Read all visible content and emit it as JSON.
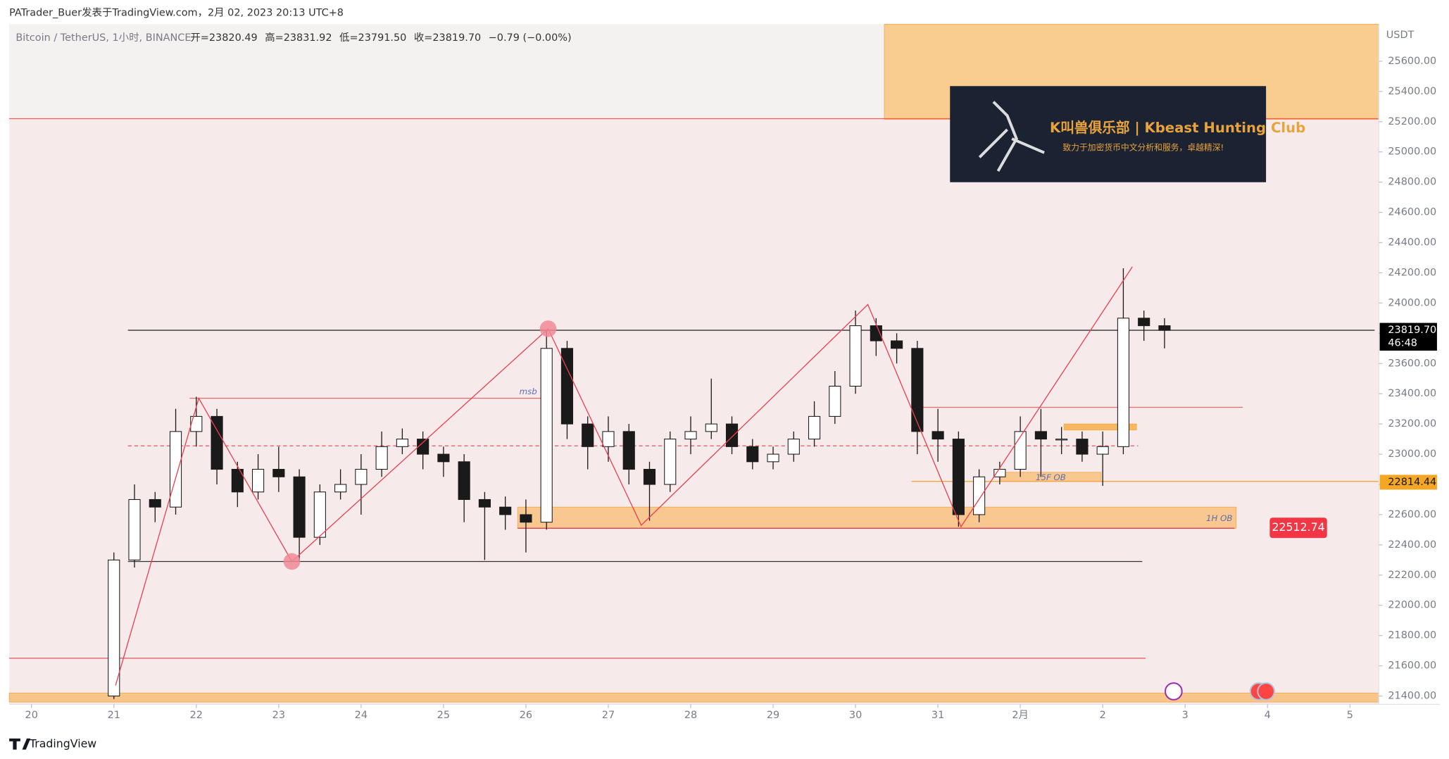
{
  "chart_data": {
    "type": "candlestick",
    "title": "PATrader_Buer发表于TradingView.com，2月 02, 2023 20:13 UTC+8",
    "symbol": "Bitcoin / TetherUS, 1小时, BINANCE",
    "ohlc_legend": [
      "开=23820.49",
      "高=23831.92",
      "低=23791.50",
      "收=23819.70",
      "−0.79 (−0.00%)"
    ],
    "y_axis_label": "USDT",
    "footer": "TradingView",
    "banner": {
      "title": "K叫兽俱乐部 | Kbeast Hunting Club",
      "subtitle": "致力于加密货币中文分析和服务，卓越精深!"
    },
    "up_color": "#ffffff",
    "down_color": "#1a1a1a",
    "wick_color": "#1a1a1a",
    "xlim": [
      -0.27,
      16.35
    ],
    "xticks": [
      {
        "value": 0,
        "label": "20"
      },
      {
        "value": 1,
        "label": "21"
      },
      {
        "value": 2,
        "label": "22"
      },
      {
        "value": 3,
        "label": "23"
      },
      {
        "value": 4,
        "label": "24"
      },
      {
        "value": 5,
        "label": "25"
      },
      {
        "value": 6,
        "label": "26"
      },
      {
        "value": 7,
        "label": "27"
      },
      {
        "value": 8,
        "label": "28"
      },
      {
        "value": 9,
        "label": "29"
      },
      {
        "value": 10,
        "label": "30"
      },
      {
        "value": 11,
        "label": "31"
      },
      {
        "value": 12,
        "label": "2月"
      },
      {
        "value": 13,
        "label": "2"
      },
      {
        "value": 14,
        "label": "3"
      },
      {
        "value": 15,
        "label": "4"
      },
      {
        "value": 16,
        "label": "5"
      }
    ],
    "ylim": [
      21345,
      25845
    ],
    "yticks": [
      {
        "value": 21400,
        "label": "21400.00"
      },
      {
        "value": 21600,
        "label": "21600.00"
      },
      {
        "value": 21800,
        "label": "21800.00"
      },
      {
        "value": 22000,
        "label": "22000.00"
      },
      {
        "value": 22200,
        "label": "22200.00"
      },
      {
        "value": 22400,
        "label": "22400.00"
      },
      {
        "value": 22600,
        "label": "22600.00"
      },
      {
        "value": 22800,
        "label": "22800.00"
      },
      {
        "value": 23000,
        "label": "23000.00"
      },
      {
        "value": 23200,
        "label": "23200.00"
      },
      {
        "value": 23400,
        "label": "23400.00"
      },
      {
        "value": 23600,
        "label": "23600.00"
      },
      {
        "value": 23800,
        "label": "23800.00"
      },
      {
        "value": 24000,
        "label": "24000.00"
      },
      {
        "value": 24200,
        "label": "24200.00"
      },
      {
        "value": 24400,
        "label": "24400.00"
      },
      {
        "value": 24600,
        "label": "24600.00"
      },
      {
        "value": 24800,
        "label": "24800.00"
      },
      {
        "value": 25000,
        "label": "25000.00"
      },
      {
        "value": 25200,
        "label": "25200.00"
      },
      {
        "value": 25400,
        "label": "25400.00"
      },
      {
        "value": 25600,
        "label": "25600.00"
      }
    ],
    "x": [
      1.0,
      1.25,
      1.5,
      1.75,
      2.0,
      2.25,
      2.5,
      2.75,
      3.0,
      3.25,
      3.5,
      3.75,
      4.0,
      4.25,
      4.5,
      4.75,
      5.0,
      5.25,
      5.5,
      5.75,
      6.0,
      6.25,
      6.5,
      6.75,
      7.0,
      7.25,
      7.5,
      7.75,
      8.0,
      8.25,
      8.5,
      8.75,
      9.0,
      9.25,
      9.5,
      9.75,
      10.0,
      10.25,
      10.5,
      10.75,
      11.0,
      11.25,
      11.5,
      11.75,
      12.0,
      12.25,
      12.5,
      12.75,
      13.0,
      13.25,
      13.5,
      13.75
    ],
    "open": [
      21400,
      22300,
      22700,
      22650,
      23150,
      23250,
      22900,
      22750,
      22900,
      22850,
      22450,
      22750,
      22800,
      22900,
      23050,
      23100,
      23000,
      22950,
      22700,
      22650,
      22600,
      22550,
      23700,
      23200,
      23050,
      23150,
      22900,
      22800,
      23100,
      23150,
      23200,
      23050,
      22950,
      23000,
      23100,
      23250,
      23450,
      23850,
      23750,
      23700,
      23150,
      23100,
      22600,
      22850,
      22900,
      23150,
      23100,
      23100,
      23000,
      23050,
      23900,
      23850
    ],
    "high": [
      22350,
      22800,
      22750,
      23300,
      23380,
      23300,
      22950,
      23000,
      23050,
      22900,
      22800,
      22900,
      23000,
      23150,
      23170,
      23150,
      23050,
      23000,
      22750,
      22720,
      22700,
      23820,
      23750,
      23250,
      23250,
      23200,
      22950,
      23150,
      23250,
      23500,
      23250,
      23100,
      23050,
      23150,
      23350,
      23550,
      23950,
      23900,
      23800,
      23750,
      23300,
      23150,
      22900,
      22950,
      23250,
      23300,
      23180,
      23150,
      23150,
      24230,
      23950,
      23900
    ],
    "low": [
      21380,
      22250,
      22550,
      22600,
      23050,
      22800,
      22650,
      22700,
      22750,
      22290,
      22400,
      22700,
      22600,
      22850,
      23000,
      22900,
      22850,
      22550,
      22300,
      22500,
      22350,
      22500,
      23100,
      22900,
      22950,
      22800,
      22560,
      22750,
      23000,
      23100,
      23000,
      22900,
      22900,
      22950,
      23050,
      23200,
      23400,
      23650,
      23600,
      23000,
      22950,
      22520,
      22550,
      22800,
      22850,
      22850,
      23000,
      22950,
      22790,
      23000,
      23750,
      23700
    ],
    "close": [
      22300,
      22700,
      22650,
      23150,
      23250,
      22900,
      22750,
      22900,
      22850,
      22450,
      22750,
      22800,
      22900,
      23050,
      23100,
      23000,
      22950,
      22700,
      22650,
      22600,
      22550,
      23700,
      23200,
      23050,
      23150,
      22900,
      22800,
      23100,
      23150,
      23200,
      23050,
      22950,
      23000,
      23100,
      23250,
      23450,
      23850,
      23750,
      23700,
      23150,
      23100,
      22600,
      22850,
      22900,
      23150,
      23100,
      23100,
      23000,
      23050,
      23900,
      23850,
      23819.7
    ],
    "zones": [
      {
        "price": [
          25215,
          25845
        ],
        "x": [
          10.35,
          16.35
        ],
        "color": "#f9cd8f"
      },
      {
        "price": [
          21360,
          21420
        ],
        "x": [
          -0.27,
          16.35
        ],
        "color": "#f7c489"
      },
      {
        "price": [
          22510,
          22650
        ],
        "x": [
          5.9,
          14.62
        ],
        "color": "#f9c891",
        "label": "1H OB"
      },
      {
        "price": [
          22820,
          22880
        ],
        "x": [
          11.76,
          12.98
        ],
        "color": "#f9c891",
        "label": "15F OB"
      },
      {
        "price": [
          23160,
          23200
        ],
        "x": [
          12.53,
          13.41
        ],
        "color": "#f7b860"
      }
    ],
    "levels": [
      {
        "price": 25220,
        "x": [
          -0.27,
          16.35
        ],
        "color": "#f05a5a"
      },
      {
        "price": 21650,
        "x": [
          -0.27,
          13.52
        ],
        "color": "#e05560"
      },
      {
        "price": 23820,
        "x": [
          1.17,
          16.3
        ],
        "color": "#333333"
      },
      {
        "price": 22290,
        "x": [
          1.17,
          13.48
        ],
        "color": "#333333"
      },
      {
        "price": 23370,
        "x": [
          1.92,
          6.18
        ],
        "color": "#e86a6a",
        "label": "msb"
      },
      {
        "price": 23055,
        "x": [
          1.17,
          13.43
        ],
        "color": "#e05560",
        "dash": true
      },
      {
        "price": 22510,
        "x": [
          5.9,
          14.6
        ],
        "color": "#e03040"
      },
      {
        "price": 23310,
        "x": [
          10.74,
          14.7
        ],
        "color": "#e86a6a"
      },
      {
        "price": 22820,
        "x": [
          10.68,
          16.35
        ],
        "color": "#f5a640"
      }
    ],
    "zigzag": {
      "color": "#e8414e",
      "x": [
        1.02,
        2.03,
        3.16,
        6.27,
        7.4,
        10.15,
        11.28,
        13.36
      ],
      "y": [
        21470,
        23370,
        22290,
        23830,
        22530,
        23990,
        22520,
        24240
      ]
    },
    "markers": {
      "color": "#f08a95",
      "x": [
        3.16,
        6.27
      ],
      "y": [
        22290,
        23830
      ]
    },
    "price_labels": [
      {
        "value": 23819.7,
        "label": "23819.70",
        "color": "#000000",
        "countdown": "46:48"
      },
      {
        "value": 22814.44,
        "label": "22814.44",
        "color": "#f5a623"
      },
      {
        "value": 22512.74,
        "label": "22512.74",
        "color": "#f23645"
      }
    ]
  }
}
